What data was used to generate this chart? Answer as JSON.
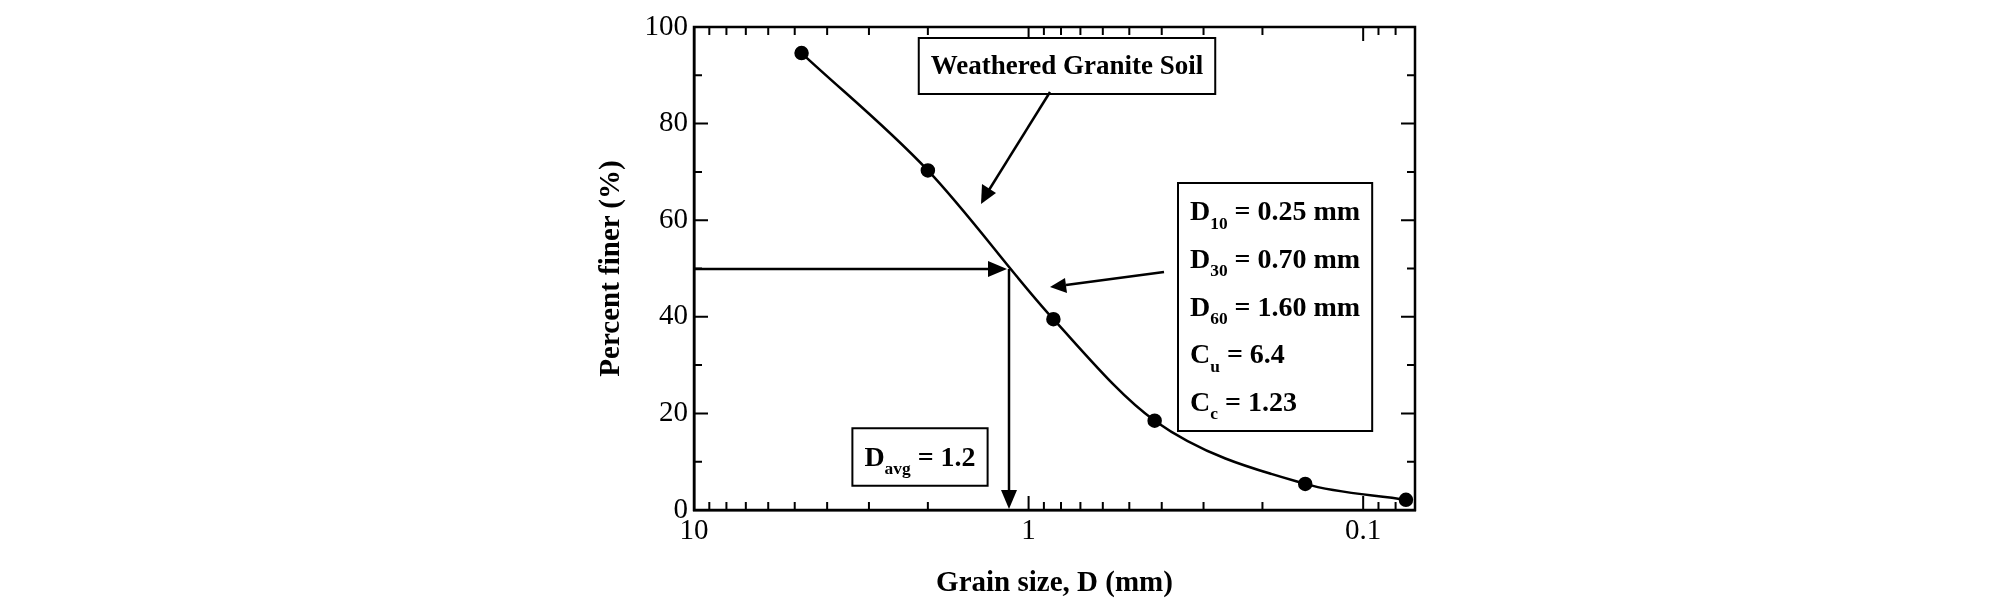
{
  "chart_data": {
    "type": "line",
    "xlabel": "Grain size, D (mm)",
    "ylabel": "Percent finer (%)",
    "x": [
      4.77,
      2.0,
      0.843,
      0.42,
      0.149,
      0.0745
    ],
    "series": [
      {
        "color": "#000000",
        "values": [
          94.6,
          70.3,
          39.5,
          18.5,
          5.4,
          2.1
        ]
      }
    ],
    "marker": "circle",
    "line_style": "solid",
    "log": "x",
    "grid": false,
    "legend": false,
    "xlim": [
      10,
      0.07
    ],
    "xticks": [
      10,
      {
        "value": 9,
        "label": null
      },
      {
        "value": 8,
        "label": null
      },
      {
        "value": 7,
        "label": null
      },
      {
        "value": 6,
        "label": null
      },
      {
        "value": 5,
        "label": null
      },
      {
        "value": 4,
        "label": null
      },
      {
        "value": 3,
        "label": null
      },
      {
        "value": 2,
        "label": null
      },
      1,
      {
        "value": 0.9,
        "label": null
      },
      {
        "value": 0.8,
        "label": null
      },
      {
        "value": 0.7,
        "label": null
      },
      {
        "value": 0.6,
        "label": null
      },
      {
        "value": 0.5,
        "label": null
      },
      {
        "value": 0.4,
        "label": null
      },
      {
        "value": 0.3,
        "label": null
      },
      {
        "value": 0.2,
        "label": null
      },
      0.1,
      {
        "value": 0.09,
        "label": null
      },
      {
        "value": 0.08,
        "label": null
      }
    ],
    "ylim": [
      0,
      100
    ],
    "yticks": [
      0,
      {
        "value": 10,
        "label": null
      },
      20,
      {
        "value": 30,
        "label": null
      },
      40,
      {
        "value": 50,
        "label": null
      },
      60,
      {
        "value": 70,
        "label": null
      },
      80,
      {
        "value": 90,
        "label": null
      },
      100
    ],
    "annotations": [
      "Weathered Granite Soil",
      "D$_{10}$ = 0.25 mm\nD$_{30}$ = 0.70 mm\nD$_{60}$ = 1.60 mm\nC$_{u}$ = 6.4\nC$_{c}$ = 1.23",
      "D$_{avg}$ = 1.2"
    ]
  }
}
